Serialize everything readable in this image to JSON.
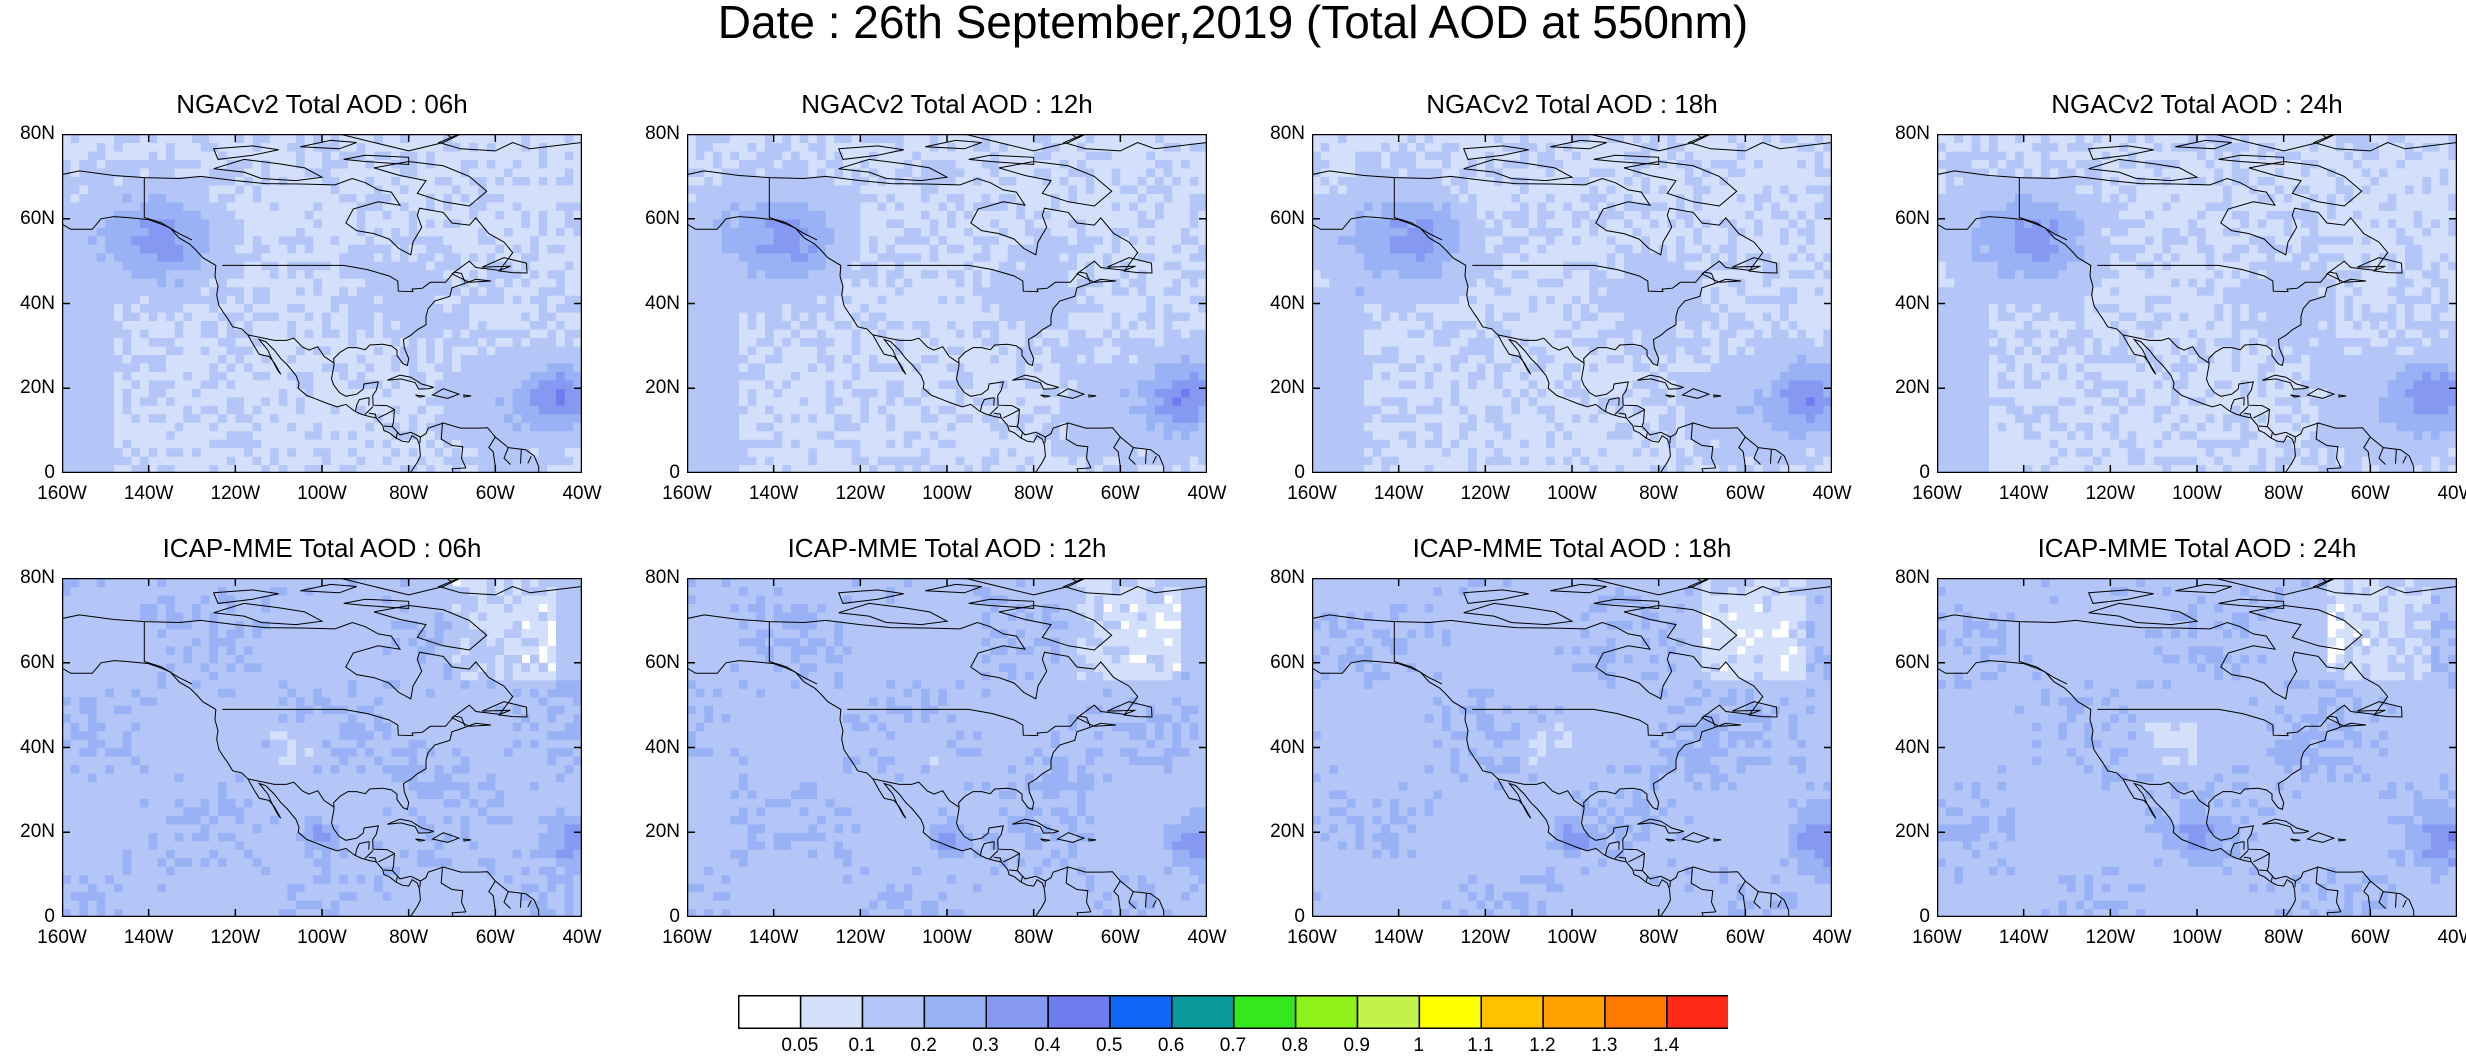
{
  "title": "Date : 26th September,2019 (Total AOD at 550nm)",
  "y_ticks": [
    "80N",
    "60N",
    "40N",
    "20N",
    "0"
  ],
  "x_ticks": [
    "160W",
    "140W",
    "120W",
    "100W",
    "80W",
    "60W",
    "40W"
  ],
  "panels": [
    {
      "title": "NGACv2 Total AOD : 06h",
      "model": "NGACv2",
      "hour": "06h"
    },
    {
      "title": "NGACv2 Total AOD : 12h",
      "model": "NGACv2",
      "hour": "12h"
    },
    {
      "title": "NGACv2 Total AOD : 18h",
      "model": "NGACv2",
      "hour": "18h"
    },
    {
      "title": "NGACv2 Total AOD : 24h",
      "model": "NGACv2",
      "hour": "24h"
    },
    {
      "title": "ICAP-MME Total AOD : 06h",
      "model": "ICAP-MME",
      "hour": "06h"
    },
    {
      "title": "ICAP-MME Total AOD : 12h",
      "model": "ICAP-MME",
      "hour": "12h"
    },
    {
      "title": "ICAP-MME Total AOD : 18h",
      "model": "ICAP-MME",
      "hour": "18h"
    },
    {
      "title": "ICAP-MME Total AOD : 24h",
      "model": "ICAP-MME",
      "hour": "24h"
    }
  ],
  "colorbar": {
    "labels": [
      "0.05",
      "0.1",
      "0.2",
      "0.3",
      "0.4",
      "0.5",
      "0.6",
      "0.7",
      "0.8",
      "0.9",
      "1",
      "1.1",
      "1.2",
      "1.3",
      "1.4"
    ],
    "colors": [
      "#ffffff",
      "#d4e0fb",
      "#b3c6f7",
      "#99b2f5",
      "#8599f2",
      "#6f7cf0",
      "#0f68f5",
      "#0a9a9a",
      "#33e81c",
      "#8ff21a",
      "#c4f24c",
      "#ffff00",
      "#ffc200",
      "#ffa000",
      "#ff7a00",
      "#ff2a1a"
    ]
  }
}
